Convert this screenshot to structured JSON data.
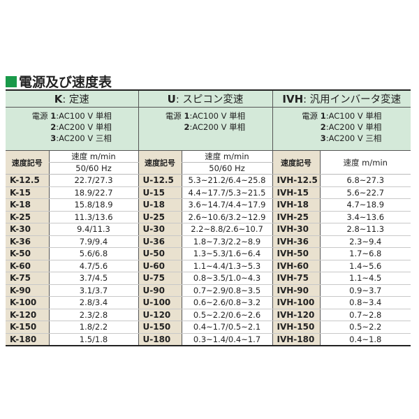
{
  "title": "電源及び速度表",
  "colors": {
    "title_square": "#1a9a4a",
    "header_bg": "#d4e9d9",
    "code_bg": "#e9e1cf"
  },
  "groups": [
    {
      "code": "K",
      "name": "定速",
      "power_prefix": "電源",
      "power": [
        [
          "1",
          "AC100 V 単相"
        ],
        [
          "2",
          "AC200 V 単相"
        ],
        [
          "3",
          "AC200 V 三相"
        ]
      ],
      "code_header": "速度記号",
      "speed_header": "速度 m/min",
      "freq_header": "50/60 Hz"
    },
    {
      "code": "U",
      "name": "スピコン変速",
      "power_prefix": "電源",
      "power": [
        [
          "1",
          "AC100 V 単相"
        ],
        [
          "2",
          "AC200 V 単相"
        ]
      ],
      "code_header": "速度記号",
      "speed_header": "速度 m/min",
      "freq_header": "50/60 Hz"
    },
    {
      "code": "IVH",
      "name": "汎用インバータ変速",
      "power_prefix": "電源",
      "power": [
        [
          "1",
          "AC100 V 単相"
        ],
        [
          "2",
          "AC200 V 単相"
        ],
        [
          "3",
          "AC200 V 三相"
        ]
      ],
      "code_header": "速度記号",
      "speed_header": "速度 m/min"
    }
  ],
  "rows": [
    [
      "K-12.5",
      "22.7/27.3",
      "U-12.5",
      "5.3~21.2/6.4~25.8",
      "IVH-12.5",
      "6.8~27.3"
    ],
    [
      "K-15",
      "18.9/22.7",
      "U-15",
      "4.4~17.7/5.3~21.5",
      "IVH-15",
      "5.6~22.7"
    ],
    [
      "K-18",
      "15.8/18.9",
      "U-18",
      "3.6~14.7/4.4~17.9",
      "IVH-18",
      "4.7~18.9"
    ],
    [
      "K-25",
      "11.3/13.6",
      "U-25",
      "2.6~10.6/3.2~12.9",
      "IVH-25",
      "3.4~13.6"
    ],
    [
      "K-30",
      "9.4/11.3",
      "U-30",
      "2.2~8.8/2.6~10.7",
      "IVH-30",
      "2.8~11.3"
    ],
    [
      "K-36",
      "7.9/9.4",
      "U-36",
      "1.8~7.3/2.2~8.9",
      "IVH-36",
      "2.3~9.4"
    ],
    [
      "K-50",
      "5.6/6.8",
      "U-50",
      "1.3~5.3/1.6~6.4",
      "IVH-50",
      "1.7~6.8"
    ],
    [
      "K-60",
      "4.7/5.6",
      "U-60",
      "1.1~4.4/1.3~5.3",
      "IVH-60",
      "1.4~5.6"
    ],
    [
      "K-75",
      "3.7/4.5",
      "U-75",
      "0.8~3.5/1.0~4.3",
      "IVH-75",
      "1.1~4.5"
    ],
    [
      "K-90",
      "3.1/3.7",
      "U-90",
      "0.7~2.9/0.8~3.5",
      "IVH-90",
      "0.9~3.7"
    ],
    [
      "K-100",
      "2.8/3.4",
      "U-100",
      "0.6~2.6/0.8~3.2",
      "IVH-100",
      "0.8~3.4"
    ],
    [
      "K-120",
      "2.3/2.8",
      "U-120",
      "0.5~2.2/0.6~2.6",
      "IVH-120",
      "0.7~2.8"
    ],
    [
      "K-150",
      "1.8/2.2",
      "U-150",
      "0.4~1.7/0.5~2.1",
      "IVH-150",
      "0.5~2.2"
    ],
    [
      "K-180",
      "1.5/1.8",
      "U-180",
      "0.3~1.4/0.4~1.7",
      "IVH-180",
      "0.4~1.8"
    ]
  ]
}
